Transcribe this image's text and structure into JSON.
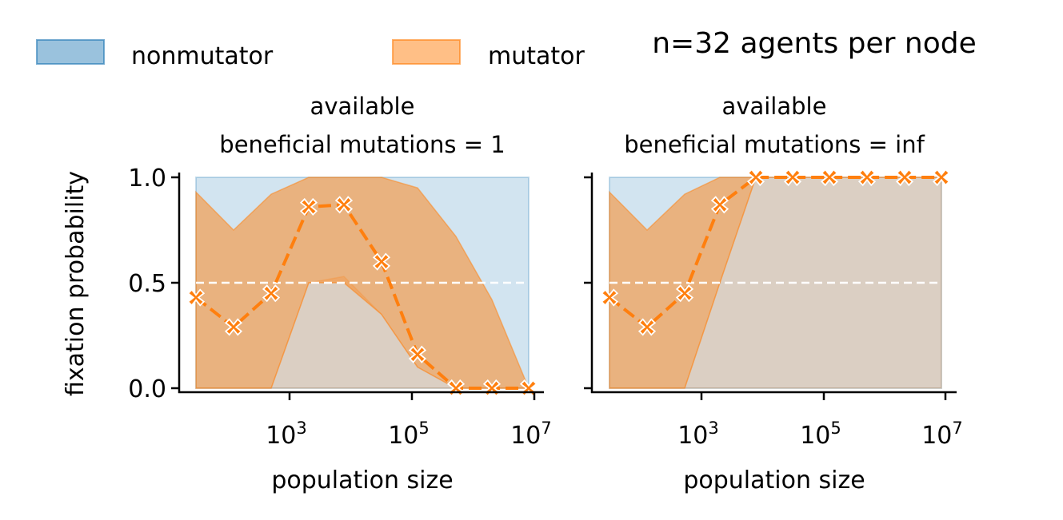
{
  "figure": {
    "suptitle": "n=32 agents per node",
    "ylabel": "fixation probability",
    "legend": [
      {
        "label": "nonmutator",
        "color": "#1f77b4"
      },
      {
        "label": "mutator",
        "color": "#ff7f0e"
      }
    ]
  },
  "colors": {
    "nonmutator": "#1f77b4",
    "mutator": "#ff7f0e",
    "threshold_line": "#ffffff"
  },
  "chart_data": [
    {
      "type": "area",
      "title_line1": "available",
      "title_line2": "beneficial mutations = 1",
      "xlabel": "population size",
      "xscale": "log",
      "xlim": [
        10,
        10000000
      ],
      "ylim": [
        0,
        1
      ],
      "xticks": [
        {
          "value": 1000,
          "base": "10",
          "exp": "3"
        },
        {
          "value": 100000,
          "base": "10",
          "exp": "5"
        },
        {
          "value": 10000000,
          "base": "10",
          "exp": "7"
        }
      ],
      "yticks": [
        "0.0",
        "0.5",
        "1.0"
      ],
      "threshold": 0.5,
      "x": [
        16,
        64,
        256,
        1024,
        4096,
        16384,
        65536,
        262144,
        1048576,
        4194304
      ],
      "nonmutator_band": {
        "lower": [
          0,
          0,
          0,
          0,
          0,
          0,
          0,
          0,
          0,
          0
        ],
        "upper": [
          1,
          1,
          1,
          1,
          1,
          1,
          1,
          1,
          1,
          1
        ]
      },
      "mutator_band": {
        "upper": [
          0.93,
          0.75,
          0.92,
          1.0,
          1.0,
          1.0,
          0.95,
          0.72,
          0.42,
          0.0
        ],
        "lower": [
          0.0,
          0.0,
          0.0,
          0.5,
          0.5,
          0.35,
          0.1,
          0.0,
          0.0,
          0.0
        ]
      },
      "outer_band": {
        "lower": [
          0,
          0,
          0,
          0,
          0,
          0,
          0,
          0,
          0,
          0
        ],
        "upper": [
          0.0,
          0.0,
          0.0,
          0.5,
          0.53,
          0.35,
          0.1,
          0.0,
          0.0,
          0.0
        ]
      },
      "series": [
        {
          "values": [
            0.43,
            0.29,
            0.45,
            0.86,
            0.87,
            0.6,
            0.16,
            0.0,
            0.0,
            0.0
          ]
        }
      ]
    },
    {
      "type": "area",
      "title_line1": "available",
      "title_line2": "beneficial mutations = inf",
      "xlabel": "population size",
      "xscale": "log",
      "xlim": [
        10,
        10000000
      ],
      "ylim": [
        0,
        1
      ],
      "xticks": [
        {
          "value": 1000,
          "base": "10",
          "exp": "3"
        },
        {
          "value": 100000,
          "base": "10",
          "exp": "5"
        },
        {
          "value": 10000000,
          "base": "10",
          "exp": "7"
        }
      ],
      "yticks": [
        "0.0",
        "0.5",
        "1.0"
      ],
      "threshold": 0.5,
      "x": [
        16,
        64,
        256,
        1024,
        4096,
        16384,
        65536,
        262144,
        1048576,
        4194304
      ],
      "nonmutator_band": {
        "lower": [
          0,
          0,
          0,
          0,
          0,
          0,
          0,
          0,
          0,
          0
        ],
        "upper": [
          1,
          1,
          1,
          1,
          1,
          1,
          1,
          1,
          1,
          1
        ]
      },
      "mutator_band": {
        "upper": [
          0.93,
          0.75,
          0.92,
          1.0,
          1.0,
          1.0,
          1.0,
          1.0,
          1.0,
          1.0
        ],
        "lower": [
          0.0,
          0.0,
          0.0,
          0.5,
          1.0,
          1.0,
          1.0,
          1.0,
          1.0,
          1.0
        ]
      },
      "outer_band": {
        "lower": [
          0,
          0,
          0,
          0,
          0,
          0,
          0,
          0,
          0,
          0
        ],
        "upper": [
          0.0,
          0.0,
          0.0,
          0.5,
          1.0,
          1.0,
          1.0,
          1.0,
          1.0,
          1.0
        ]
      },
      "series": [
        {
          "values": [
            0.43,
            0.29,
            0.45,
            0.87,
            1.0,
            1.0,
            1.0,
            1.0,
            1.0,
            1.0
          ]
        }
      ]
    }
  ]
}
